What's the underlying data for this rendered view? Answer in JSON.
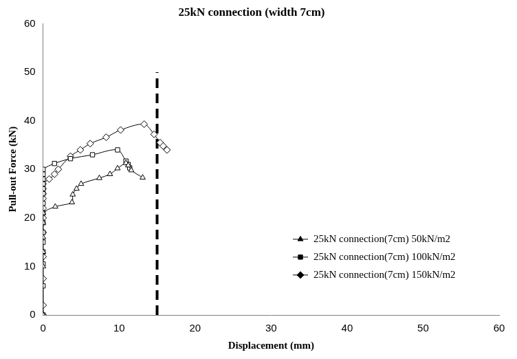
{
  "chart_data": {
    "type": "line",
    "title": "25kN connection (width 7cm)",
    "x_label": "Displacement (mm)",
    "y_label": "Pull-out Force (kN)",
    "xlim": [
      0,
      60
    ],
    "xticks": [
      0,
      10,
      20,
      30,
      40,
      50,
      60
    ],
    "ylim": [
      0,
      60
    ],
    "yticks": [
      0,
      10,
      20,
      30,
      40,
      50,
      60
    ],
    "grid": false,
    "legend": "right",
    "series": [
      {
        "name": "25kN connection(7cm) 50kN/m2",
        "color": "#000000",
        "marker": "triangle",
        "line_style": "solid",
        "x": [
          0,
          0,
          0,
          0,
          0,
          0,
          1.6,
          3.8,
          3.9,
          4.4,
          5,
          7.4,
          8.8,
          9.8,
          10.9,
          11.2,
          11.6,
          13.1
        ],
        "values": [
          0,
          10,
          13,
          16,
          19,
          21,
          22.3,
          23.2,
          24.8,
          26,
          27,
          28.2,
          29,
          30.2,
          31.3,
          30.8,
          29.8,
          28.3
        ]
      },
      {
        "name": "25kN connection(7cm) 100kN/m2",
        "color": "#000000",
        "marker": "square",
        "line_style": "solid",
        "x": [
          0,
          0,
          0,
          0,
          0,
          0,
          0,
          0,
          0,
          0,
          0,
          0,
          0,
          0,
          0,
          1.5,
          3.6,
          6.5,
          9.8,
          10.9,
          11.2,
          11.4
        ],
        "values": [
          0,
          6,
          10.5,
          13,
          15,
          17,
          19,
          21,
          23,
          25,
          26,
          27,
          28,
          29,
          30,
          31.2,
          32.2,
          33,
          34,
          31.7,
          31,
          30.3
        ]
      },
      {
        "name": "25kN connection(7cm) 150kN/m2",
        "color": "#000000",
        "marker": "diamond",
        "line_style": "solid",
        "x": [
          0,
          0,
          0,
          0,
          0,
          0,
          0,
          0,
          0,
          0,
          0,
          0.8,
          1.5,
          2,
          3.6,
          4.9,
          6.2,
          8.3,
          10.2,
          13.3,
          14.6,
          15.4,
          15.8,
          16.3
        ],
        "values": [
          0,
          2,
          7.5,
          12,
          17,
          20,
          22,
          24,
          25,
          26,
          27,
          28,
          29,
          30,
          32.7,
          34,
          35.3,
          36.6,
          38.1,
          39.3,
          37.2,
          35.5,
          34.8,
          34
        ]
      }
    ],
    "reference_line": {
      "x": [
        15,
        15
      ],
      "values": [
        0,
        50
      ],
      "color": "#000000",
      "line_style": "dashed"
    }
  }
}
